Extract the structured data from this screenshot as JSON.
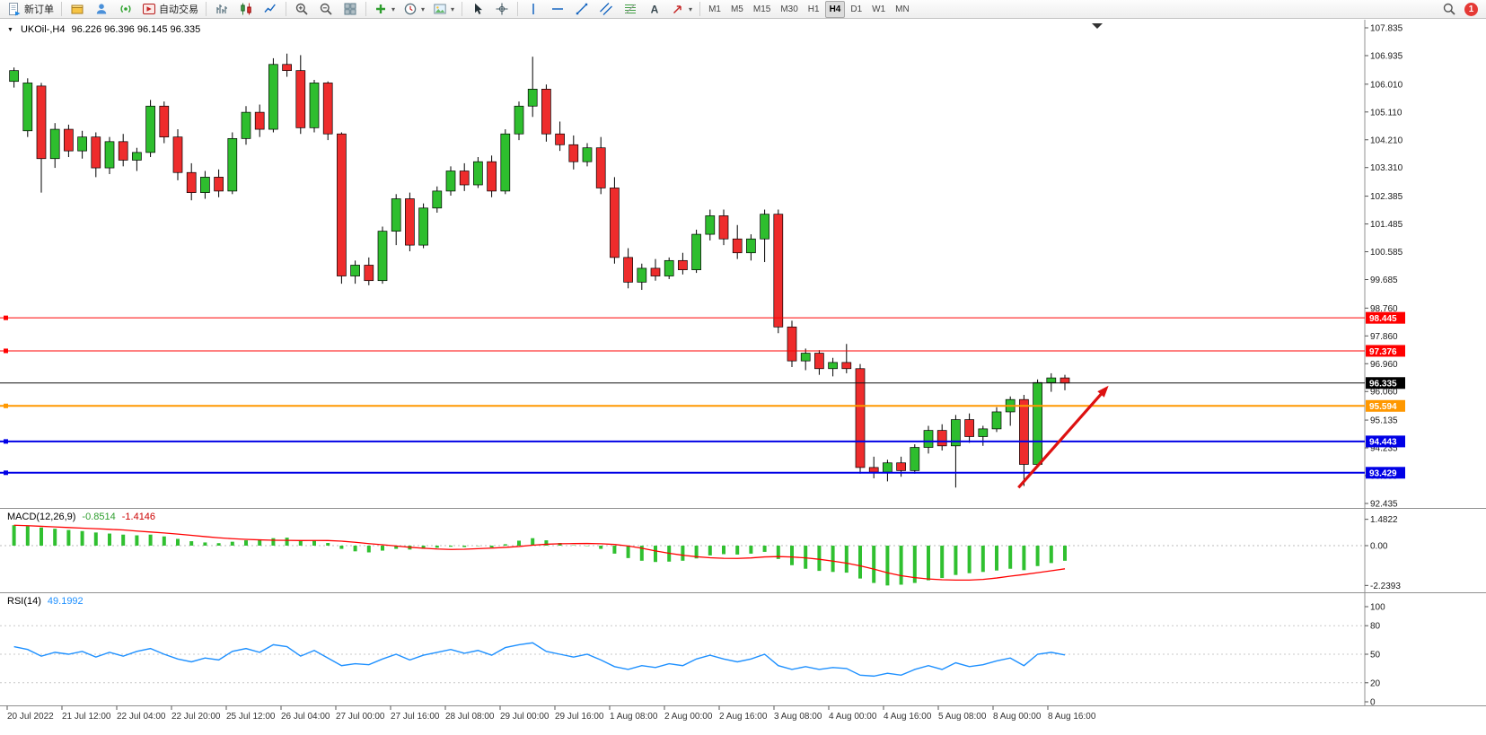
{
  "toolbar": {
    "items": [
      {
        "name": "new-order-button",
        "icon": "order",
        "label": "新订单"
      },
      {
        "type": "sep"
      },
      {
        "name": "market-watch-button",
        "icon": "gold"
      },
      {
        "name": "data-window-button",
        "icon": "person"
      },
      {
        "name": "signals-button",
        "icon": "signal"
      },
      {
        "name": "autotrading-button",
        "icon": "autotrade",
        "label": "自动交易"
      },
      {
        "type": "sep"
      },
      {
        "name": "bar-chart-button",
        "icon": "bars"
      },
      {
        "name": "candlestick-chart-button",
        "icon": "candles"
      },
      {
        "name": "line-chart-button",
        "icon": "line"
      },
      {
        "type": "sep"
      },
      {
        "name": "zoom-in-button",
        "icon": "zoomin"
      },
      {
        "name": "zoom-out-button",
        "icon": "zoomout"
      },
      {
        "name": "tile-windows-button",
        "icon": "tile"
      },
      {
        "type": "sep"
      },
      {
        "name": "indicators-button",
        "icon": "plus",
        "dropdown": true
      },
      {
        "name": "periods-button",
        "icon": "clock",
        "dropdown": true
      },
      {
        "name": "templates-button",
        "icon": "image",
        "dropdown": true
      },
      {
        "type": "sep"
      },
      {
        "name": "cursor-button",
        "icon": "cursor"
      },
      {
        "name": "crosshair-button",
        "icon": "crosshair"
      },
      {
        "type": "sep"
      },
      {
        "name": "vertical-line-button",
        "icon": "vline"
      },
      {
        "name": "horizontal-line-button",
        "icon": "hline"
      },
      {
        "name": "trendline-button",
        "icon": "tline"
      },
      {
        "name": "channel-button",
        "icon": "channel"
      },
      {
        "name": "fibonacci-button",
        "icon": "fibo"
      },
      {
        "name": "text-button",
        "icon": "textA"
      },
      {
        "name": "arrows-button",
        "icon": "arrowmk",
        "dropdown": true
      },
      {
        "type": "sep"
      }
    ],
    "timeframes": [
      "M1",
      "M5",
      "M15",
      "M30",
      "H1",
      "H4",
      "D1",
      "W1",
      "MN"
    ],
    "active_timeframe": "H4",
    "notification_count": "1"
  },
  "chart_data": {
    "type": "candlestick",
    "title": "UKOil-,H4",
    "ohlc_text": "96.226 96.396 96.145 96.335",
    "ylim": [
      92.435,
      107.835
    ],
    "up_color": "#2EBE2E",
    "down_color": "#EE2C2C",
    "price_ticks": [
      "107.835",
      "106.935",
      "106.010",
      "105.110",
      "104.210",
      "103.310",
      "102.385",
      "101.485",
      "100.585",
      "99.685",
      "98.760",
      "97.860",
      "96.960",
      "96.060",
      "95.135",
      "94.235",
      "93.335",
      "92.435"
    ],
    "time_labels": [
      "20 Jul 2022",
      "21 Jul 12:00",
      "22 Jul 04:00",
      "22 Jul 20:00",
      "25 Jul 12:00",
      "26 Jul 04:00",
      "27 Jul 00:00",
      "27 Jul 16:00",
      "28 Jul 08:00",
      "29 Jul 00:00",
      "29 Jul 16:00",
      "1 Aug 08:00",
      "2 Aug 00:00",
      "2 Aug 16:00",
      "3 Aug 08:00",
      "4 Aug 00:00",
      "4 Aug 16:00",
      "5 Aug 08:00",
      "8 Aug 00:00",
      "8 Aug 16:00"
    ],
    "candles": [
      [
        106.1,
        106.55,
        105.9,
        106.45
      ],
      [
        104.5,
        106.2,
        104.3,
        106.05
      ],
      [
        105.95,
        106.05,
        102.5,
        103.6
      ],
      [
        103.6,
        104.75,
        103.3,
        104.55
      ],
      [
        104.55,
        104.7,
        103.65,
        103.85
      ],
      [
        103.85,
        104.5,
        103.6,
        104.3
      ],
      [
        104.3,
        104.45,
        103.0,
        103.3
      ],
      [
        103.3,
        104.3,
        103.1,
        104.15
      ],
      [
        104.15,
        104.4,
        103.35,
        103.55
      ],
      [
        103.55,
        103.95,
        103.2,
        103.8
      ],
      [
        103.8,
        105.5,
        103.65,
        105.3
      ],
      [
        105.3,
        105.45,
        104.1,
        104.3
      ],
      [
        104.3,
        104.55,
        102.9,
        103.15
      ],
      [
        103.15,
        103.45,
        102.25,
        102.5
      ],
      [
        102.5,
        103.2,
        102.3,
        103.0
      ],
      [
        103.0,
        103.25,
        102.35,
        102.55
      ],
      [
        102.55,
        104.45,
        102.45,
        104.25
      ],
      [
        104.25,
        105.3,
        104.05,
        105.1
      ],
      [
        105.1,
        105.35,
        104.3,
        104.55
      ],
      [
        104.55,
        106.85,
        104.45,
        106.65
      ],
      [
        106.65,
        107.0,
        106.25,
        106.45
      ],
      [
        106.45,
        106.95,
        104.4,
        104.6
      ],
      [
        104.6,
        106.15,
        104.45,
        106.05
      ],
      [
        106.05,
        106.1,
        104.2,
        104.4
      ],
      [
        104.4,
        104.45,
        99.55,
        99.8
      ],
      [
        99.8,
        100.3,
        99.55,
        100.15
      ],
      [
        100.15,
        100.4,
        99.5,
        99.65
      ],
      [
        99.65,
        101.4,
        99.55,
        101.25
      ],
      [
        101.25,
        102.45,
        100.8,
        102.3
      ],
      [
        102.3,
        102.5,
        100.6,
        100.8
      ],
      [
        100.8,
        102.15,
        100.7,
        102.0
      ],
      [
        102.0,
        102.7,
        101.85,
        102.55
      ],
      [
        102.55,
        103.35,
        102.4,
        103.2
      ],
      [
        103.2,
        103.45,
        102.55,
        102.75
      ],
      [
        102.75,
        103.65,
        102.65,
        103.5
      ],
      [
        103.5,
        103.7,
        102.35,
        102.55
      ],
      [
        102.55,
        104.55,
        102.45,
        104.4
      ],
      [
        104.4,
        105.45,
        104.2,
        105.3
      ],
      [
        105.3,
        106.9,
        104.95,
        105.85
      ],
      [
        105.85,
        106.0,
        104.15,
        104.4
      ],
      [
        104.4,
        104.8,
        103.85,
        104.05
      ],
      [
        104.05,
        104.35,
        103.25,
        103.5
      ],
      [
        103.5,
        104.1,
        103.35,
        103.95
      ],
      [
        103.95,
        104.3,
        102.45,
        102.65
      ],
      [
        102.65,
        103.0,
        100.2,
        100.4
      ],
      [
        100.4,
        100.7,
        99.4,
        99.6
      ],
      [
        99.6,
        100.2,
        99.35,
        100.05
      ],
      [
        100.05,
        100.35,
        99.65,
        99.8
      ],
      [
        99.8,
        100.4,
        99.7,
        100.3
      ],
      [
        100.3,
        100.55,
        99.85,
        100.0
      ],
      [
        100.0,
        101.3,
        99.9,
        101.15
      ],
      [
        101.15,
        101.95,
        100.95,
        101.75
      ],
      [
        101.75,
        101.95,
        100.8,
        101.0
      ],
      [
        101.0,
        101.45,
        100.35,
        100.55
      ],
      [
        100.55,
        101.15,
        100.3,
        101.0
      ],
      [
        101.0,
        101.95,
        100.25,
        101.8
      ],
      [
        101.8,
        101.95,
        97.95,
        98.15
      ],
      [
        98.15,
        98.35,
        96.85,
        97.05
      ],
      [
        97.05,
        97.45,
        96.75,
        97.3
      ],
      [
        97.3,
        97.4,
        96.6,
        96.8
      ],
      [
        96.8,
        97.15,
        96.55,
        97.0
      ],
      [
        97.0,
        97.6,
        96.65,
        96.8
      ],
      [
        96.8,
        96.95,
        93.4,
        93.6
      ],
      [
        93.6,
        93.95,
        93.25,
        93.45
      ],
      [
        93.45,
        93.85,
        93.15,
        93.75
      ],
      [
        93.75,
        93.95,
        93.3,
        93.5
      ],
      [
        93.5,
        94.35,
        93.4,
        94.25
      ],
      [
        94.25,
        94.95,
        94.05,
        94.8
      ],
      [
        94.8,
        95.0,
        94.15,
        94.3
      ],
      [
        94.3,
        95.3,
        92.95,
        95.15
      ],
      [
        95.15,
        95.35,
        94.4,
        94.6
      ],
      [
        94.6,
        94.95,
        94.3,
        94.85
      ],
      [
        94.85,
        95.55,
        94.75,
        95.4
      ],
      [
        95.4,
        95.9,
        94.95,
        95.8
      ],
      [
        95.8,
        95.95,
        93.0,
        93.7
      ],
      [
        93.7,
        96.45,
        93.6,
        96.35
      ],
      [
        96.35,
        96.65,
        96.05,
        96.5
      ],
      [
        96.5,
        96.6,
        96.1,
        96.335
      ]
    ],
    "hlines": [
      {
        "price": 98.445,
        "label": "98.445",
        "color": "#FF0000",
        "width": 1
      },
      {
        "price": 97.376,
        "label": "97.376",
        "color": "#FF0000",
        "width": 1
      },
      {
        "price": 95.594,
        "label": "95.594",
        "color": "#FF9800",
        "width": 2
      },
      {
        "price": 94.443,
        "label": "94.443",
        "color": "#0000E6",
        "width": 2
      },
      {
        "price": 93.429,
        "label": "93.429",
        "color": "#0000E6",
        "width": 2
      }
    ],
    "current_price": {
      "price": 96.335,
      "label": "96.335",
      "color": "#000000"
    },
    "macd": {
      "label": "MACD(12,26,9)",
      "value_main": "-0.8514",
      "value_signal": "-1.4146",
      "ticks": [
        "1.4822",
        "0.00",
        "-2.2393"
      ],
      "histogram_color": "#30C030",
      "signal_color": "#FF0000",
      "histogram": [
        1.15,
        1.1,
        1.02,
        0.95,
        0.88,
        0.82,
        0.74,
        0.68,
        0.62,
        0.58,
        0.62,
        0.52,
        0.38,
        0.25,
        0.18,
        0.14,
        0.22,
        0.3,
        0.32,
        0.42,
        0.45,
        0.3,
        0.28,
        0.15,
        -0.18,
        -0.32,
        -0.38,
        -0.28,
        -0.18,
        -0.22,
        -0.18,
        -0.12,
        -0.06,
        -0.08,
        -0.02,
        -0.1,
        0.08,
        0.28,
        0.42,
        0.3,
        0.15,
        0.02,
        -0.02,
        -0.18,
        -0.45,
        -0.7,
        -0.85,
        -0.92,
        -0.9,
        -0.85,
        -0.72,
        -0.55,
        -0.48,
        -0.5,
        -0.45,
        -0.35,
        -0.75,
        -1.1,
        -1.3,
        -1.42,
        -1.48,
        -1.52,
        -1.85,
        -2.1,
        -2.24,
        -2.2,
        -2.1,
        -1.95,
        -1.82,
        -1.65,
        -1.55,
        -1.48,
        -1.4,
        -1.3,
        -1.38,
        -1.15,
        -0.98,
        -0.8514
      ]
    },
    "rsi": {
      "label": "RSI(14)",
      "value": "49.1992",
      "ticks": [
        "100",
        "80",
        "50",
        "20",
        "0"
      ],
      "levels": [
        80,
        50,
        20
      ],
      "color": "#1E90FF",
      "values": [
        58,
        55,
        48,
        52,
        50,
        53,
        47,
        52,
        48,
        53,
        56,
        50,
        45,
        42,
        46,
        44,
        53,
        56,
        52,
        60,
        58,
        48,
        54,
        46,
        38,
        40,
        39,
        45,
        50,
        44,
        49,
        52,
        55,
        51,
        54,
        49,
        57,
        60,
        62,
        53,
        50,
        47,
        50,
        44,
        37,
        34,
        38,
        36,
        40,
        38,
        45,
        49,
        45,
        42,
        45,
        50,
        38,
        34,
        37,
        34,
        36,
        35,
        28,
        27,
        30,
        28,
        34,
        38,
        34,
        41,
        37,
        39,
        43,
        46,
        38,
        50,
        52,
        49.2
      ]
    },
    "arrow": {
      "from_bar": 74.6,
      "from_price": 92.95,
      "to_bar": 81.2,
      "to_price": 96.25,
      "color": "#DD1111"
    }
  }
}
